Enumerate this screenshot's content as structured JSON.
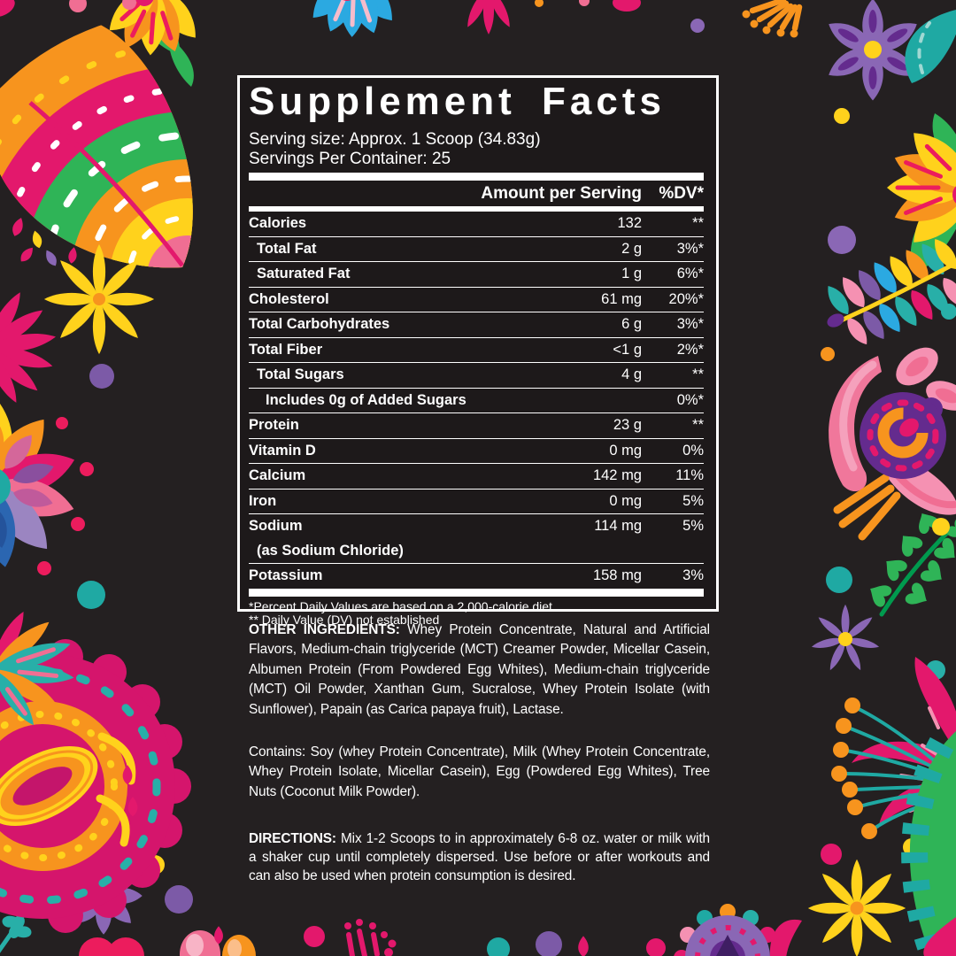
{
  "panel": {
    "title": "Supplement Facts",
    "serving_size": "Serving size: Approx. 1 Scoop (34.83g)",
    "servings_per_container": "Servings Per Container: 25",
    "header": {
      "amount": "Amount per Serving",
      "dv": "%DV*"
    },
    "rows": [
      {
        "label": "Calories",
        "amount": "132",
        "dv": "**",
        "indent": 0
      },
      {
        "label": "Total Fat",
        "amount": "2 g",
        "dv": "3%*",
        "indent": 1
      },
      {
        "label": "Saturated Fat",
        "amount": "1 g",
        "dv": "6%*",
        "indent": 1
      },
      {
        "label": "Cholesterol",
        "amount": "61 mg",
        "dv": "20%*",
        "indent": 0
      },
      {
        "label": "Total Carbohydrates",
        "amount": "6 g",
        "dv": "3%*",
        "indent": 0
      },
      {
        "label": "Total Fiber",
        "amount": "<1 g",
        "dv": "2%*",
        "indent": 0
      },
      {
        "label": "Total Sugars",
        "amount": "4 g",
        "dv": "**",
        "indent": 1
      },
      {
        "label": "Includes 0g of Added Sugars",
        "amount": "",
        "dv": "0%*",
        "indent": 2
      },
      {
        "label": "Protein",
        "amount": "23 g",
        "dv": "**",
        "indent": 0
      },
      {
        "label": "Vitamin D",
        "amount": "0 mg",
        "dv": "0%",
        "indent": 0
      },
      {
        "label": "Calcium",
        "amount": "142 mg",
        "dv": "11%",
        "indent": 0
      },
      {
        "label": "Iron",
        "amount": "0 mg",
        "dv": "5%",
        "indent": 0
      },
      {
        "label": "Sodium",
        "amount": "114 mg",
        "dv": "5%",
        "indent": 0,
        "sub": "(as Sodium Chloride)"
      },
      {
        "label": "Potassium",
        "amount": "158 mg",
        "dv": "3%",
        "indent": 0
      }
    ],
    "footnotes": [
      "*Percent Daily Values are based on a 2,000-calorie diet",
      "** Daily Value (DV) not established"
    ]
  },
  "sections": {
    "other_ingredients_label": "OTHER INGREDIENTS:",
    "other_ingredients_text": " Whey Protein Concentrate, Natural and Artificial Flavors, Medium-chain triglyceride (MCT) Creamer Powder, Micellar Casein, Albumen Protein (From Powdered Egg Whites), Medium-chain triglyceride (MCT) Oil Powder, Xanthan Gum, Sucralose, Whey Protein Isolate (with Sunflower), Papain (as Carica papaya fruit), Lactase.",
    "contains_text": "Contains: Soy (whey Protein Concentrate), Milk (Whey Protein Concentrate, Whey Protein Isolate, Micellar Casein), Egg (Powdered Egg Whites), Tree Nuts (Coconut Milk Powder).",
    "directions_label": "DIRECTIONS:",
    "directions_text": " Mix 1-2 Scoops to in approximately 6-8 oz. water or milk with a shaker cup until completely dispersed. Use before or after workouts and can also be used when protein consumption is desired."
  },
  "decorations": {
    "background": "#242021",
    "panel_background": "#1d191a",
    "text_color": "#ffffff",
    "palette": {
      "magenta": "#E3186C",
      "pink": "#F06E93",
      "light_pink": "#F591B2",
      "orange": "#F7941E",
      "yellow": "#FFD21C",
      "red": "#EC1C24",
      "green": "#2FB457",
      "dark_green": "#009A4E",
      "teal": "#28AFA8",
      "blue": "#2BA9E1",
      "dark_blue": "#2B66B1",
      "purple": "#8A67B5",
      "dark_purple": "#642B8E",
      "lavender": "#9B85C1"
    },
    "ornaments": [
      "folk-leaf",
      "marigold-top",
      "blue-top-flower",
      "orange-dot-spray",
      "purple-flower-top-right",
      "teal-leaf",
      "marigold-right",
      "rainbow-fern",
      "pink-ornament-flower",
      "green-fern",
      "purple-daisy",
      "magenta-lily",
      "yellow-star-flower",
      "green-striped-crescent",
      "purple-crest-fan",
      "scalloped-eye-flower",
      "multicolor-half-daisy",
      "pink-spiky-flower",
      "teal-heart-branch",
      "tulip-and-buds",
      "confetti-dots"
    ]
  }
}
